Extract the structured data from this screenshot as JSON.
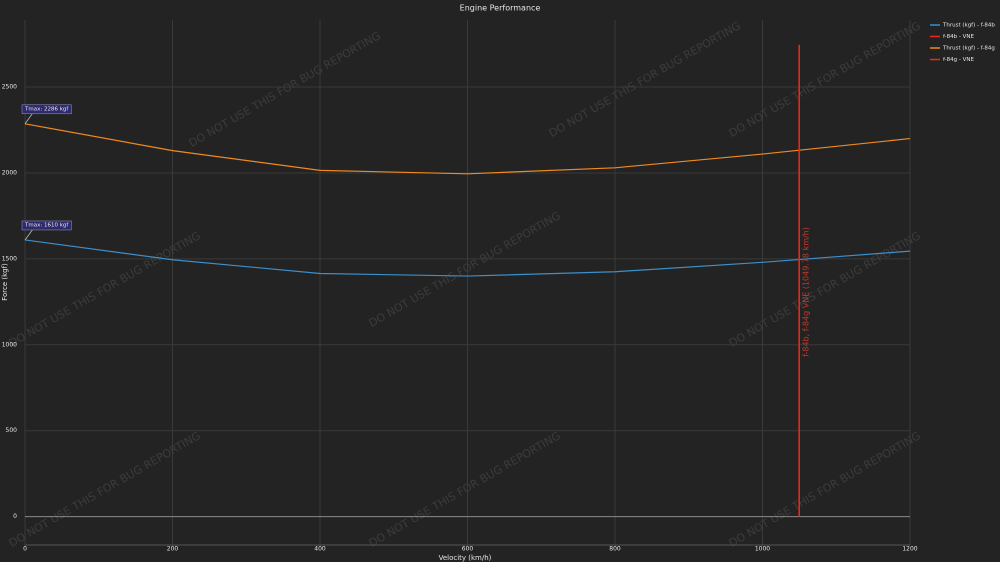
{
  "chart_data": {
    "type": "line",
    "title": "Engine Performance",
    "x_label": "Velocity (km/h)",
    "y_label": "Force (kgf)",
    "watermark": "DO NOT USE THIS FOR BUG REPORTING",
    "xlim": [
      0,
      1200
    ],
    "xticks": [
      0,
      200,
      400,
      600,
      800,
      1000,
      1200
    ],
    "ylim": [
      -165,
      2890
    ],
    "yticks": [
      0,
      500,
      1000,
      1500,
      2000,
      2500
    ],
    "grid": true,
    "legend": "top-right",
    "series": [
      {
        "name": "Thrust (kgf) - f-84b",
        "color": "#3d8fc9",
        "x": [
          0,
          200,
          400,
          600,
          800,
          1000,
          1200
        ],
        "values": [
          1610,
          1495,
          1415,
          1400,
          1425,
          1480,
          1545
        ]
      },
      {
        "name": "f-84b - VNE",
        "color": "#e8291c",
        "x": [
          1049.78,
          1049.78
        ],
        "values": [
          0,
          2745
        ]
      },
      {
        "name": "Thrust (kgf) - f-84g",
        "color": "#f08a1e",
        "x": [
          0,
          200,
          400,
          600,
          800,
          1000,
          1200
        ],
        "values": [
          2286,
          2130,
          2015,
          1995,
          2030,
          2110,
          2200
        ]
      },
      {
        "name": "f-84g - VNE",
        "color": "#e8291c",
        "x": [
          1049.78,
          1049.78
        ],
        "values": [
          0,
          2745
        ]
      }
    ],
    "annotations": [
      {
        "text": "Tmax: 2286 kgf",
        "x": 0,
        "y": 2286
      },
      {
        "text": "Tmax: 1610 kgf",
        "x": 0,
        "y": 1610
      }
    ],
    "vne_label": "f-84b, f-84g VNE (1049.78 km/h)"
  }
}
